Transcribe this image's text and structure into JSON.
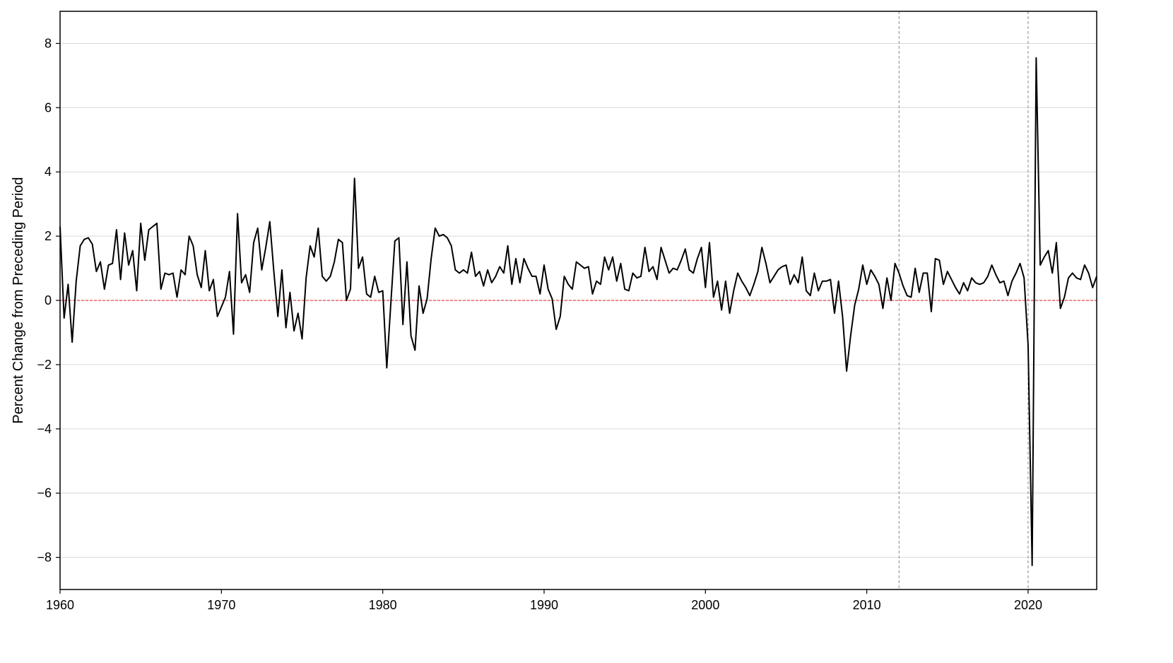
{
  "chart_data": {
    "type": "line",
    "title": "",
    "xlabel": "",
    "ylabel": "Percent Change from Preceding Period",
    "xlim": [
      1960,
      2024.25
    ],
    "ylim": [
      -9,
      9
    ],
    "x_ticks": [
      "1960",
      "1970",
      "1980",
      "1990",
      "2000",
      "2010",
      "2020"
    ],
    "y_ticks": [
      "−8",
      "−6",
      "−4",
      "−2",
      "0",
      "2",
      "4",
      "6",
      "8"
    ],
    "grid": "horizontal",
    "legend": "none",
    "colors": {
      "line": "#000000",
      "zero_line": "#e31a1c",
      "vertical_markers": "#888888",
      "grid": "#d9d9d9"
    },
    "reference_lines": {
      "horizontal": [
        0
      ],
      "vertical": [
        2012,
        2020
      ]
    },
    "series": [
      {
        "values": [
          [
            1960.0,
            2.3
          ],
          [
            1960.25,
            -0.55
          ],
          [
            1960.5,
            0.5
          ],
          [
            1960.75,
            -1.3
          ],
          [
            1961.0,
            0.6
          ],
          [
            1961.25,
            1.7
          ],
          [
            1961.5,
            1.9
          ],
          [
            1961.75,
            1.95
          ],
          [
            1962.0,
            1.75
          ],
          [
            1962.25,
            0.9
          ],
          [
            1962.5,
            1.2
          ],
          [
            1962.75,
            0.35
          ],
          [
            1963.0,
            1.1
          ],
          [
            1963.25,
            1.15
          ],
          [
            1963.5,
            2.2
          ],
          [
            1963.75,
            0.65
          ],
          [
            1964.0,
            2.1
          ],
          [
            1964.25,
            1.1
          ],
          [
            1964.5,
            1.55
          ],
          [
            1964.75,
            0.3
          ],
          [
            1965.0,
            2.4
          ],
          [
            1965.25,
            1.25
          ],
          [
            1965.5,
            2.2
          ],
          [
            1965.75,
            2.3
          ],
          [
            1966.0,
            2.4
          ],
          [
            1966.25,
            0.35
          ],
          [
            1966.5,
            0.85
          ],
          [
            1966.75,
            0.8
          ],
          [
            1967.0,
            0.85
          ],
          [
            1967.25,
            0.1
          ],
          [
            1967.5,
            0.95
          ],
          [
            1967.75,
            0.8
          ],
          [
            1968.0,
            2.0
          ],
          [
            1968.25,
            1.7
          ],
          [
            1968.5,
            0.8
          ],
          [
            1968.75,
            0.4
          ],
          [
            1969.0,
            1.55
          ],
          [
            1969.25,
            0.3
          ],
          [
            1969.5,
            0.65
          ],
          [
            1969.75,
            -0.5
          ],
          [
            1970.0,
            -0.2
          ],
          [
            1970.25,
            0.1
          ],
          [
            1970.5,
            0.9
          ],
          [
            1970.75,
            -1.05
          ],
          [
            1971.0,
            2.7
          ],
          [
            1971.25,
            0.55
          ],
          [
            1971.5,
            0.8
          ],
          [
            1971.75,
            0.25
          ],
          [
            1972.0,
            1.8
          ],
          [
            1972.25,
            2.25
          ],
          [
            1972.5,
            0.95
          ],
          [
            1972.75,
            1.65
          ],
          [
            1973.0,
            2.45
          ],
          [
            1973.25,
            0.9
          ],
          [
            1973.5,
            -0.5
          ],
          [
            1973.75,
            0.95
          ],
          [
            1974.0,
            -0.85
          ],
          [
            1974.25,
            0.25
          ],
          [
            1974.5,
            -0.95
          ],
          [
            1974.75,
            -0.4
          ],
          [
            1975.0,
            -1.2
          ],
          [
            1975.25,
            0.7
          ],
          [
            1975.5,
            1.7
          ],
          [
            1975.75,
            1.35
          ],
          [
            1976.0,
            2.25
          ],
          [
            1976.25,
            0.75
          ],
          [
            1976.5,
            0.6
          ],
          [
            1976.75,
            0.75
          ],
          [
            1977.0,
            1.2
          ],
          [
            1977.25,
            1.9
          ],
          [
            1977.5,
            1.8
          ],
          [
            1977.75,
            0.0
          ],
          [
            1978.0,
            0.35
          ],
          [
            1978.25,
            3.8
          ],
          [
            1978.5,
            1.0
          ],
          [
            1978.75,
            1.35
          ],
          [
            1979.0,
            0.2
          ],
          [
            1979.25,
            0.1
          ],
          [
            1979.5,
            0.75
          ],
          [
            1979.75,
            0.25
          ],
          [
            1980.0,
            0.3
          ],
          [
            1980.25,
            -2.1
          ],
          [
            1980.5,
            -0.1
          ],
          [
            1980.75,
            1.85
          ],
          [
            1981.0,
            1.95
          ],
          [
            1981.25,
            -0.75
          ],
          [
            1981.5,
            1.2
          ],
          [
            1981.75,
            -1.1
          ],
          [
            1982.0,
            -1.55
          ],
          [
            1982.25,
            0.45
          ],
          [
            1982.5,
            -0.4
          ],
          [
            1982.75,
            0.05
          ],
          [
            1983.0,
            1.3
          ],
          [
            1983.25,
            2.25
          ],
          [
            1983.5,
            2.0
          ],
          [
            1983.75,
            2.05
          ],
          [
            1984.0,
            1.95
          ],
          [
            1984.25,
            1.7
          ],
          [
            1984.5,
            0.95
          ],
          [
            1984.75,
            0.85
          ],
          [
            1985.0,
            0.95
          ],
          [
            1985.25,
            0.85
          ],
          [
            1985.5,
            1.5
          ],
          [
            1985.75,
            0.75
          ],
          [
            1986.0,
            0.9
          ],
          [
            1986.25,
            0.45
          ],
          [
            1986.5,
            0.95
          ],
          [
            1986.75,
            0.55
          ],
          [
            1987.0,
            0.75
          ],
          [
            1987.25,
            1.05
          ],
          [
            1987.5,
            0.85
          ],
          [
            1987.75,
            1.7
          ],
          [
            1988.0,
            0.5
          ],
          [
            1988.25,
            1.3
          ],
          [
            1988.5,
            0.55
          ],
          [
            1988.75,
            1.3
          ],
          [
            1989.0,
            1.0
          ],
          [
            1989.25,
            0.75
          ],
          [
            1989.5,
            0.75
          ],
          [
            1989.75,
            0.2
          ],
          [
            1990.0,
            1.1
          ],
          [
            1990.25,
            0.35
          ],
          [
            1990.5,
            0.05
          ],
          [
            1990.75,
            -0.9
          ],
          [
            1991.0,
            -0.5
          ],
          [
            1991.25,
            0.75
          ],
          [
            1991.5,
            0.5
          ],
          [
            1991.75,
            0.35
          ],
          [
            1992.0,
            1.2
          ],
          [
            1992.25,
            1.1
          ],
          [
            1992.5,
            1.0
          ],
          [
            1992.75,
            1.05
          ],
          [
            1993.0,
            0.2
          ],
          [
            1993.25,
            0.6
          ],
          [
            1993.5,
            0.5
          ],
          [
            1993.75,
            1.35
          ],
          [
            1994.0,
            0.95
          ],
          [
            1994.25,
            1.35
          ],
          [
            1994.5,
            0.6
          ],
          [
            1994.75,
            1.15
          ],
          [
            1995.0,
            0.35
          ],
          [
            1995.25,
            0.3
          ],
          [
            1995.5,
            0.85
          ],
          [
            1995.75,
            0.7
          ],
          [
            1996.0,
            0.75
          ],
          [
            1996.25,
            1.65
          ],
          [
            1996.5,
            0.9
          ],
          [
            1996.75,
            1.05
          ],
          [
            1997.0,
            0.65
          ],
          [
            1997.25,
            1.65
          ],
          [
            1997.5,
            1.25
          ],
          [
            1997.75,
            0.85
          ],
          [
            1998.0,
            1.0
          ],
          [
            1998.25,
            0.95
          ],
          [
            1998.5,
            1.25
          ],
          [
            1998.75,
            1.6
          ],
          [
            1999.0,
            0.95
          ],
          [
            1999.25,
            0.85
          ],
          [
            1999.5,
            1.3
          ],
          [
            1999.75,
            1.65
          ],
          [
            2000.0,
            0.4
          ],
          [
            2000.25,
            1.8
          ],
          [
            2000.5,
            0.1
          ],
          [
            2000.75,
            0.6
          ],
          [
            2001.0,
            -0.3
          ],
          [
            2001.25,
            0.6
          ],
          [
            2001.5,
            -0.4
          ],
          [
            2001.75,
            0.3
          ],
          [
            2002.0,
            0.85
          ],
          [
            2002.25,
            0.6
          ],
          [
            2002.5,
            0.4
          ],
          [
            2002.75,
            0.15
          ],
          [
            2003.0,
            0.5
          ],
          [
            2003.25,
            0.9
          ],
          [
            2003.5,
            1.65
          ],
          [
            2003.75,
            1.15
          ],
          [
            2004.0,
            0.55
          ],
          [
            2004.25,
            0.75
          ],
          [
            2004.5,
            0.95
          ],
          [
            2004.75,
            1.05
          ],
          [
            2005.0,
            1.1
          ],
          [
            2005.25,
            0.5
          ],
          [
            2005.5,
            0.8
          ],
          [
            2005.75,
            0.55
          ],
          [
            2006.0,
            1.35
          ],
          [
            2006.25,
            0.3
          ],
          [
            2006.5,
            0.15
          ],
          [
            2006.75,
            0.85
          ],
          [
            2007.0,
            0.3
          ],
          [
            2007.25,
            0.6
          ],
          [
            2007.5,
            0.6
          ],
          [
            2007.75,
            0.65
          ],
          [
            2008.0,
            -0.4
          ],
          [
            2008.25,
            0.6
          ],
          [
            2008.5,
            -0.5
          ],
          [
            2008.75,
            -2.2
          ],
          [
            2009.0,
            -1.1
          ],
          [
            2009.25,
            -0.15
          ],
          [
            2009.5,
            0.35
          ],
          [
            2009.75,
            1.1
          ],
          [
            2010.0,
            0.5
          ],
          [
            2010.25,
            0.95
          ],
          [
            2010.5,
            0.75
          ],
          [
            2010.75,
            0.5
          ],
          [
            2011.0,
            -0.25
          ],
          [
            2011.25,
            0.7
          ],
          [
            2011.5,
            0.0
          ],
          [
            2011.75,
            1.15
          ],
          [
            2012.0,
            0.85
          ],
          [
            2012.25,
            0.45
          ],
          [
            2012.5,
            0.15
          ],
          [
            2012.75,
            0.1
          ],
          [
            2013.0,
            1.0
          ],
          [
            2013.25,
            0.25
          ],
          [
            2013.5,
            0.85
          ],
          [
            2013.75,
            0.85
          ],
          [
            2014.0,
            -0.35
          ],
          [
            2014.25,
            1.3
          ],
          [
            2014.5,
            1.25
          ],
          [
            2014.75,
            0.5
          ],
          [
            2015.0,
            0.9
          ],
          [
            2015.25,
            0.65
          ],
          [
            2015.5,
            0.4
          ],
          [
            2015.75,
            0.2
          ],
          [
            2016.0,
            0.55
          ],
          [
            2016.25,
            0.3
          ],
          [
            2016.5,
            0.7
          ],
          [
            2016.75,
            0.55
          ],
          [
            2017.0,
            0.5
          ],
          [
            2017.25,
            0.55
          ],
          [
            2017.5,
            0.75
          ],
          [
            2017.75,
            1.1
          ],
          [
            2018.0,
            0.8
          ],
          [
            2018.25,
            0.55
          ],
          [
            2018.5,
            0.6
          ],
          [
            2018.75,
            0.15
          ],
          [
            2019.0,
            0.6
          ],
          [
            2019.25,
            0.85
          ],
          [
            2019.5,
            1.15
          ],
          [
            2019.75,
            0.7
          ],
          [
            2020.0,
            -1.4
          ],
          [
            2020.25,
            -8.25
          ],
          [
            2020.5,
            7.55
          ],
          [
            2020.75,
            1.1
          ],
          [
            2021.0,
            1.35
          ],
          [
            2021.25,
            1.55
          ],
          [
            2021.5,
            0.85
          ],
          [
            2021.75,
            1.8
          ],
          [
            2022.0,
            -0.25
          ],
          [
            2022.25,
            0.1
          ],
          [
            2022.5,
            0.7
          ],
          [
            2022.75,
            0.85
          ],
          [
            2023.0,
            0.7
          ],
          [
            2023.25,
            0.65
          ],
          [
            2023.5,
            1.1
          ],
          [
            2023.75,
            0.85
          ],
          [
            2024.0,
            0.4
          ],
          [
            2024.25,
            0.75
          ]
        ]
      }
    ]
  }
}
